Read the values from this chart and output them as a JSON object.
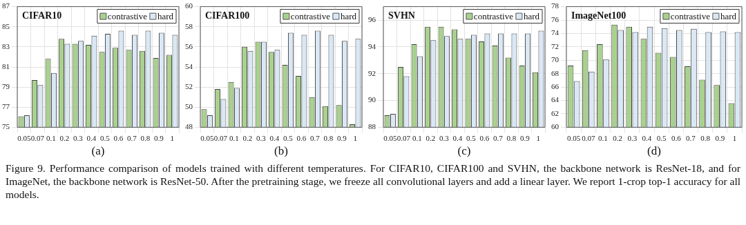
{
  "chart_data": [
    {
      "type": "bar",
      "title": "CIFAR10",
      "xlabel": "(a)",
      "categories": [
        "0.05",
        "0.07",
        "0.1",
        "0.2",
        "0.3",
        "0.4",
        "0.5",
        "0.6",
        "0.7",
        "0.8",
        "0.9",
        "1"
      ],
      "series": [
        {
          "name": "contrastive",
          "color": "#a9d18e",
          "values": [
            76.1,
            79.7,
            81.8,
            83.8,
            83.3,
            83.2,
            82.5,
            82.9,
            82.7,
            82.6,
            81.9,
            82.2
          ]
        },
        {
          "name": "hard",
          "color": "#dae8f5",
          "values": [
            76.2,
            79.2,
            80.4,
            83.3,
            83.6,
            84.1,
            84.3,
            84.6,
            84.2,
            84.6,
            84.4,
            84.2
          ]
        }
      ],
      "ylim": [
        75,
        87
      ],
      "yticks": [
        75,
        77,
        79,
        81,
        83,
        85,
        87
      ],
      "grid": true,
      "legend": "top right",
      "annotations": [
        "Figure 9. Performance comparison of models trained with different temperatures. For CIFAR10, CIFAR100 and SVHN, the backbone network is ResNet-18, and for ImageNet, the backbone network is ResNet-50. After the pretraining stage, we freeze all convolutional layers and add a linear layer. We report 1-crop top-1 accuracy for all models."
      ]
    },
    {
      "type": "bar",
      "title": "CIFAR100",
      "xlabel": "(b)",
      "categories": [
        "0.05",
        "0.07",
        "0.1",
        "0.2",
        "0.3",
        "0.4",
        "0.5",
        "0.6",
        "0.7",
        "0.8",
        "0.9",
        "1"
      ],
      "series": [
        {
          "name": "contrastive",
          "color": "#a9d18e",
          "values": [
            49.8,
            51.8,
            52.5,
            56.0,
            56.5,
            55.5,
            54.2,
            53.1,
            51.0,
            50.1,
            50.2,
            48.3
          ]
        },
        {
          "name": "hard",
          "color": "#dae8f5",
          "values": [
            49.2,
            50.8,
            51.9,
            55.6,
            56.5,
            55.7,
            57.4,
            57.2,
            57.6,
            57.2,
            56.6,
            56.8
          ]
        }
      ],
      "ylim": [
        48,
        60
      ],
      "yticks": [
        48,
        50,
        52,
        54,
        56,
        58,
        60
      ],
      "grid": true,
      "legend": "top right"
    },
    {
      "type": "bar",
      "title": "SVHN",
      "xlabel": "(c)",
      "categories": [
        "0.05",
        "0.07",
        "0.1",
        "0.2",
        "0.3",
        "0.4",
        "0.5",
        "0.6",
        "0.7",
        "0.8",
        "0.9",
        "1"
      ],
      "series": [
        {
          "name": "contrastive",
          "color": "#a9d18e",
          "values": [
            88.9,
            92.5,
            94.2,
            95.5,
            95.5,
            95.3,
            94.6,
            94.4,
            94.1,
            93.2,
            92.6,
            92.1
          ]
        },
        {
          "name": "hard",
          "color": "#dae8f5",
          "values": [
            89.0,
            91.8,
            93.3,
            94.5,
            94.8,
            94.6,
            94.9,
            95.0,
            95.0,
            95.0,
            95.0,
            95.2
          ]
        }
      ],
      "ylim": [
        88,
        97
      ],
      "yticks": [
        88,
        90,
        92,
        94,
        96
      ],
      "grid": true,
      "legend": "top right"
    },
    {
      "type": "bar",
      "title": "ImageNet100",
      "xlabel": "(d)",
      "categories": [
        "0.05",
        "0.07",
        "0.1",
        "0.2",
        "0.3",
        "0.4",
        "0.5",
        "0.6",
        "0.7",
        "0.8",
        "0.9",
        "1"
      ],
      "series": [
        {
          "name": "contrastive",
          "color": "#a9d18e",
          "values": [
            69.2,
            71.5,
            72.4,
            75.3,
            75.0,
            73.2,
            71.1,
            70.5,
            69.1,
            67.1,
            66.3,
            63.6
          ]
        },
        {
          "name": "hard",
          "color": "#dae8f5",
          "values": [
            66.9,
            68.3,
            70.1,
            74.5,
            74.2,
            75.0,
            74.8,
            74.5,
            74.7,
            74.2,
            74.3,
            74.2
          ]
        }
      ],
      "ylim": [
        60,
        78
      ],
      "yticks": [
        60,
        62,
        64,
        66,
        68,
        70,
        72,
        74,
        76,
        78
      ],
      "grid": true,
      "legend": "top right"
    }
  ]
}
